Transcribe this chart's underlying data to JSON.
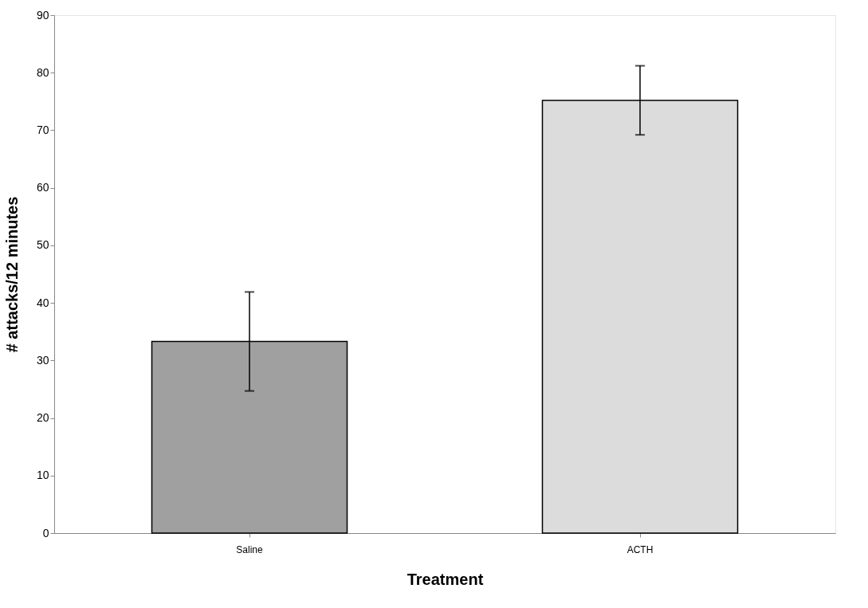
{
  "chart_data": {
    "type": "bar",
    "xlabel": "Treatment",
    "ylabel": "# attacks/12 minutes",
    "categories": [
      "Saline",
      "ACTH"
    ],
    "values": [
      33.3,
      75.2
    ],
    "colors": [
      "#a0a0a0",
      "#dcdcdc"
    ],
    "errors": [
      8.6,
      6
    ],
    "ylim": [
      0,
      90
    ],
    "yticks": [
      0,
      10,
      20,
      30,
      40,
      50,
      60,
      70,
      80,
      90
    ],
    "grid": false
  }
}
